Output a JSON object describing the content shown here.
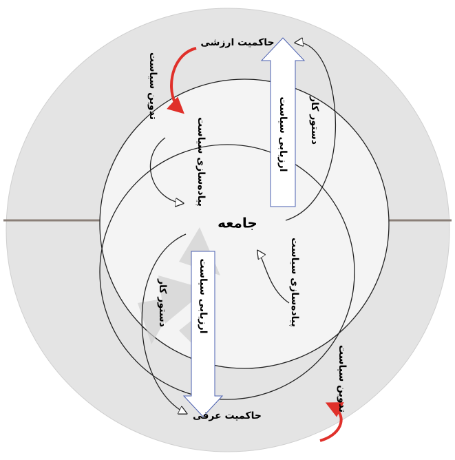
{
  "nodes": [
    {
      "label": "حاکمیت ارزشی"
    },
    {
      "label": "تدوین سیاست"
    },
    {
      "label": "دستور کار"
    },
    {
      "label": "ارزیابی سیاست"
    },
    {
      "label": "پیاده‌سازی سیاست"
    },
    {
      "label": "جامعه"
    },
    {
      "label": "پیاده‌سازی سیاست"
    },
    {
      "label": "ارزیابی سیاست"
    },
    {
      "label": "دستور کار"
    },
    {
      "label": "تدوین سیاست"
    },
    {
      "label": "حاکمیت عرفی"
    }
  ]
}
